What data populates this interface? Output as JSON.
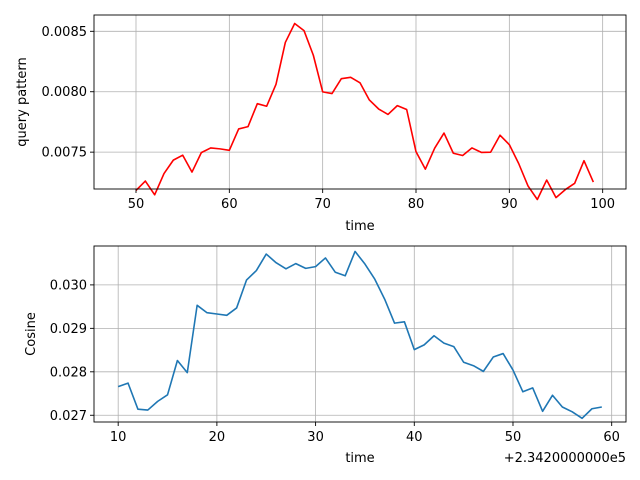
{
  "chart_data": [
    {
      "type": "line",
      "xlabel": "time",
      "ylabel": "query pattern",
      "xlim": [
        45.5,
        102.5
      ],
      "ylim": [
        0.007195,
        0.008635
      ],
      "xticks": [
        50,
        60,
        70,
        80,
        90,
        100
      ],
      "xtick_labels": [
        "50",
        "60",
        "70",
        "80",
        "90",
        "100"
      ],
      "yticks": [
        0.0075,
        0.008,
        0.0085
      ],
      "ytick_labels": [
        "0.0075",
        "0.0080",
        "0.0085"
      ],
      "grid": true,
      "series": [
        {
          "color": "#ff0000",
          "x": [
            50,
            51,
            52,
            53,
            54,
            55,
            56,
            57,
            58,
            59,
            60,
            61,
            62,
            63,
            64,
            65,
            66,
            67,
            68,
            69,
            70,
            71,
            72,
            73,
            74,
            75,
            76,
            77,
            78,
            79,
            80,
            81,
            82,
            83,
            84,
            85,
            86,
            87,
            88,
            89,
            90,
            91,
            92,
            93,
            94,
            95,
            96,
            97,
            98,
            99
          ],
          "values": [
            0.007183,
            0.007261,
            0.007147,
            0.007323,
            0.007434,
            0.007475,
            0.007335,
            0.007496,
            0.007535,
            0.007527,
            0.007515,
            0.007692,
            0.007711,
            0.007901,
            0.00788,
            0.008061,
            0.008408,
            0.008565,
            0.008506,
            0.008302,
            0.007999,
            0.007985,
            0.008108,
            0.008119,
            0.008074,
            0.007932,
            0.007857,
            0.007812,
            0.007885,
            0.007853,
            0.007504,
            0.007359,
            0.007533,
            0.007658,
            0.007491,
            0.007472,
            0.007535,
            0.007498,
            0.0075,
            0.00764,
            0.007562,
            0.007406,
            0.00722,
            0.007108,
            0.007269,
            0.007124,
            0.00719,
            0.007242,
            0.007429,
            0.007252
          ]
        }
      ]
    },
    {
      "type": "line",
      "xlabel": "time",
      "ylabel": "Cosine",
      "x_offset_label": "+2.3420000000e5",
      "xlim": [
        7.55,
        61.45
      ],
      "ylim": [
        0.026845,
        0.030895
      ],
      "xticks": [
        10,
        20,
        30,
        40,
        50,
        60
      ],
      "xtick_labels": [
        "10",
        "20",
        "30",
        "40",
        "50",
        "60"
      ],
      "yticks": [
        0.027,
        0.028,
        0.029,
        0.03
      ],
      "ytick_labels": [
        "0.027",
        "0.028",
        "0.029",
        "0.030"
      ],
      "grid": true,
      "series": [
        {
          "color": "#1f77b4",
          "x": [
            10,
            11,
            12,
            13,
            14,
            15,
            16,
            17,
            18,
            19,
            20,
            21,
            22,
            23,
            24,
            25,
            26,
            27,
            28,
            29,
            30,
            31,
            32,
            33,
            34,
            35,
            36,
            37,
            38,
            39,
            40,
            41,
            42,
            43,
            44,
            45,
            46,
            47,
            48,
            49,
            50,
            51,
            52,
            53,
            54,
            55,
            56,
            57,
            58,
            59
          ],
          "values": [
            0.02766,
            0.02774,
            0.02714,
            0.02712,
            0.02732,
            0.02747,
            0.02826,
            0.02798,
            0.02953,
            0.02936,
            0.02933,
            0.0293,
            0.02947,
            0.03011,
            0.03033,
            0.03071,
            0.03051,
            0.03037,
            0.03049,
            0.03038,
            0.03042,
            0.03062,
            0.03029,
            0.03021,
            0.03077,
            0.03048,
            0.03013,
            0.02967,
            0.02912,
            0.02915,
            0.02851,
            0.02862,
            0.02883,
            0.02866,
            0.02858,
            0.02822,
            0.02814,
            0.02801,
            0.02834,
            0.02842,
            0.02804,
            0.02754,
            0.02763,
            0.02709,
            0.02746,
            0.02719,
            0.02708,
            0.02693,
            0.02715,
            0.02719
          ]
        }
      ]
    }
  ]
}
